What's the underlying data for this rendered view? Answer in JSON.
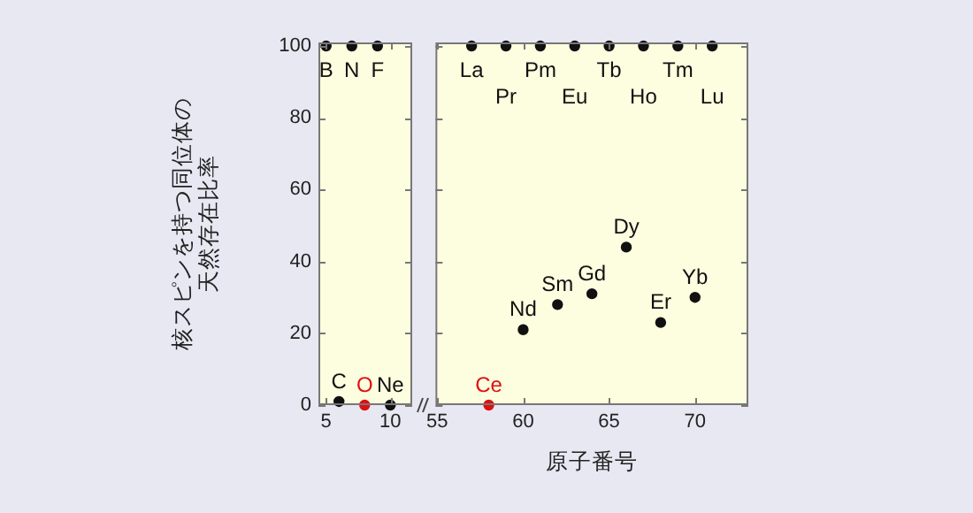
{
  "chart_data": [
    {
      "type": "scatter",
      "ylabel": "核スピンを持つ同位体の天然存在比率",
      "x": [
        5,
        6,
        7,
        8,
        9,
        10
      ],
      "values": [
        100,
        1,
        100,
        0,
        100,
        0
      ],
      "colors": [
        "#111111",
        "#111111",
        "#111111",
        "#dd1111",
        "#111111",
        "#111111"
      ],
      "value_labels": [
        "B",
        "C",
        "N",
        "O",
        "F",
        "Ne"
      ],
      "xlim": [
        4.4,
        11.7
      ],
      "xticks": [
        5,
        10
      ],
      "ylim": [
        0,
        101
      ],
      "yticks": [
        0,
        20,
        40,
        60,
        80,
        100
      ],
      "grid": false,
      "marker": "circle"
    },
    {
      "type": "scatter",
      "xlabel": "原子番号",
      "x": [
        57,
        58,
        59,
        60,
        61,
        62,
        63,
        64,
        65,
        66,
        67,
        68,
        69,
        70,
        71
      ],
      "values": [
        100,
        0,
        100,
        21,
        100,
        28,
        100,
        31,
        100,
        44,
        100,
        23,
        100,
        30,
        100
      ],
      "colors": [
        "#111111",
        "#dd1111",
        "#111111",
        "#111111",
        "#111111",
        "#111111",
        "#111111",
        "#111111",
        "#111111",
        "#111111",
        "#111111",
        "#111111",
        "#111111",
        "#111111",
        "#111111"
      ],
      "value_labels": [
        "La",
        "Ce",
        "Pr",
        "Nd",
        "Pm",
        "Sm",
        "Eu",
        "Gd",
        "Tb",
        "Dy",
        "Ho",
        "Er",
        "Tm",
        "Yb",
        "Lu"
      ],
      "xlim": [
        54.9,
        73.1
      ],
      "xticks": [
        55,
        60,
        65,
        70
      ],
      "ylim": [
        0,
        101
      ],
      "yticks": [
        0,
        20,
        40,
        60,
        80,
        100
      ],
      "grid": false,
      "marker": "circle",
      "tick_labels": "x"
    }
  ]
}
